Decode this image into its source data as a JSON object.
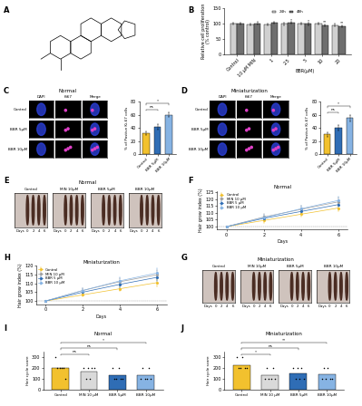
{
  "structure_panel": {
    "panel": "A"
  },
  "chart_data": [
    {
      "panel": "B",
      "type": "bar",
      "ylabel": "Relative cell proliferation\n(% control)",
      "categories": [
        "Control",
        "10 μM MIN",
        "1",
        "2.5",
        "5",
        "10",
        "20"
      ],
      "group": {
        "label": "BBR(μM)",
        "categories": [
          "1",
          "2.5",
          "5",
          "10",
          "20"
        ]
      },
      "series": [
        {
          "name": "24h",
          "color": "#d0d0d0",
          "values": [
            100,
            97,
            98,
            99,
            101,
            100,
            96
          ],
          "errors": [
            3,
            3,
            3,
            3,
            3,
            3,
            3
          ]
        },
        {
          "name": "48h",
          "color": "#6e6e6e",
          "values": [
            100,
            101,
            104,
            103,
            99,
            95,
            92
          ],
          "errors": [
            3,
            4,
            3,
            3,
            3,
            3,
            4
          ],
          "significance": [
            null,
            null,
            null,
            "*",
            "*",
            "**",
            "**"
          ]
        }
      ],
      "ylim": [
        0,
        150
      ],
      "yticks": [
        0,
        50,
        100,
        150
      ],
      "legend": "upper center"
    },
    {
      "panel": "C",
      "type": "bar",
      "ylabel": "% of Postive Ki-67 cells",
      "categories": [
        "Control",
        "BBR 5μM",
        "BBR 10μM"
      ],
      "values": [
        32,
        42,
        60
      ],
      "errors": [
        3,
        4,
        4
      ],
      "colors": [
        "#f2c12e",
        "#2f6db5",
        "#86b3e3"
      ],
      "ylim": [
        0,
        80
      ],
      "yticks": [
        0,
        20,
        40,
        60,
        80
      ],
      "comparisons": [
        {
          "pair": [
            0,
            1
          ],
          "text": "ns"
        },
        {
          "pair": [
            0,
            2
          ],
          "text": "*"
        }
      ]
    },
    {
      "panel": "D",
      "type": "bar",
      "ylabel": "% of Postive Ki-67 cells",
      "categories": [
        "Control",
        "BBR 5μM",
        "BBR 10μM"
      ],
      "values": [
        30,
        40,
        55
      ],
      "errors": [
        3,
        4,
        5
      ],
      "colors": [
        "#f2c12e",
        "#2f6db5",
        "#86b3e3"
      ],
      "ylim": [
        0,
        80
      ],
      "yticks": [
        0,
        20,
        40,
        60,
        80
      ],
      "comparisons": [
        {
          "pair": [
            0,
            1
          ],
          "text": "ns"
        },
        {
          "pair": [
            0,
            2
          ],
          "text": "*"
        }
      ]
    },
    {
      "panel": "F",
      "type": "line",
      "title": "Normal",
      "xlabel": "Days",
      "ylabel": "Hair grow index (%)",
      "x": [
        0,
        2,
        4,
        6
      ],
      "xlim": [
        -0.5,
        6.5
      ],
      "xticks": [
        0,
        2,
        4,
        6
      ],
      "ylim": [
        98,
        126
      ],
      "yticks": [
        100,
        105,
        110,
        115,
        120,
        125
      ],
      "reference_line": 100,
      "legend": "upper left",
      "marker": "o",
      "series": [
        {
          "name": "Control",
          "color": "#f2c12e",
          "values": [
            100,
            104.5,
            109,
            113.5
          ],
          "errors": [
            0,
            1.5,
            2,
            2.5
          ]
        },
        {
          "name": "MIN 10 μM",
          "color": "#9e9e9e",
          "values": [
            100,
            107,
            112.5,
            118
          ],
          "errors": [
            0,
            2,
            2.5,
            3
          ]
        },
        {
          "name": "BBR 5 μM",
          "color": "#2f6db5",
          "values": [
            100,
            106,
            111,
            116
          ],
          "errors": [
            0,
            1.5,
            2,
            2.5
          ]
        },
        {
          "name": "BBR 10 μM",
          "color": "#86b3e3",
          "values": [
            100,
            106.5,
            113,
            119
          ],
          "errors": [
            0,
            2,
            2.5,
            3
          ]
        }
      ]
    },
    {
      "panel": "H",
      "type": "line",
      "title": "Miniaturization",
      "xlabel": "Days",
      "ylabel": "Hair grow index (%)",
      "x": [
        0,
        2,
        4,
        6
      ],
      "xlim": [
        -0.5,
        6.5
      ],
      "xticks": [
        0,
        2,
        4,
        6
      ],
      "ylim": [
        98,
        120
      ],
      "yticks": [
        100,
        105,
        110,
        115,
        120
      ],
      "reference_line": 100,
      "legend": "upper left",
      "marker": "o",
      "series": [
        {
          "name": "Control",
          "color": "#f2c12e",
          "values": [
            100,
            103.5,
            107,
            110.5
          ],
          "errors": [
            0,
            1,
            1.5,
            2
          ]
        },
        {
          "name": "MIN 10 μM",
          "color": "#9e9e9e",
          "values": [
            100,
            106,
            111,
            115
          ],
          "errors": [
            0,
            1.5,
            2,
            2.5
          ]
        },
        {
          "name": "BBR 5 μM",
          "color": "#2f6db5",
          "values": [
            100,
            105,
            109.5,
            113.5
          ],
          "errors": [
            0,
            1.5,
            2,
            2
          ]
        },
        {
          "name": "BBR 10 μM",
          "color": "#86b3e3",
          "values": [
            100,
            106,
            111.5,
            116
          ],
          "errors": [
            0,
            1.5,
            2,
            2.5
          ]
        }
      ]
    },
    {
      "panel": "I",
      "type": "bar",
      "title": "Normal",
      "ylabel": "Hair cycle score",
      "categories": [
        "Control",
        "MIN 10 μM",
        "BBR 5μM",
        "BBR 10μM"
      ],
      "values": [
        200,
        165,
        135,
        130
      ],
      "points": [
        [
          300,
          200,
          200,
          200,
          200,
          100
        ],
        [
          200,
          100,
          200,
          100,
          200,
          200
        ],
        [
          200,
          100,
          100,
          200,
          100,
          100
        ],
        [
          100,
          200,
          100,
          100,
          200,
          100
        ]
      ],
      "colors": [
        "#f2c12e",
        "#d9d9d9",
        "#2f6db5",
        "#86b3e3"
      ],
      "ylim": [
        0,
        350
      ],
      "yticks": [
        0,
        100,
        200,
        300
      ],
      "comparisons": [
        {
          "pair": [
            0,
            1
          ],
          "text": "ns"
        },
        {
          "pair": [
            0,
            2
          ],
          "text": "ns"
        },
        {
          "pair": [
            0,
            3
          ],
          "text": "*"
        }
      ]
    },
    {
      "panel": "J",
      "type": "bar",
      "title": "Miniaturization",
      "ylabel": "Hair cycle score",
      "categories": [
        "Control",
        "MIN 10 μM",
        "BBR 5μM",
        "BBR 10μM"
      ],
      "values": [
        225,
        135,
        150,
        140
      ],
      "points": [
        [
          300,
          200,
          200,
          300,
          200,
          200
        ],
        [
          100,
          200,
          100,
          100,
          200,
          100
        ],
        [
          200,
          100,
          200,
          100,
          200,
          100
        ],
        [
          100,
          200,
          100,
          200,
          100,
          100
        ]
      ],
      "colors": [
        "#f2c12e",
        "#d9d9d9",
        "#2f6db5",
        "#86b3e3"
      ],
      "ylim": [
        0,
        350
      ],
      "yticks": [
        0,
        100,
        200,
        300
      ],
      "comparisons": [
        {
          "pair": [
            0,
            1
          ],
          "text": "*"
        },
        {
          "pair": [
            0,
            2
          ],
          "text": "ns"
        },
        {
          "pair": [
            0,
            3
          ],
          "text": "**"
        }
      ]
    }
  ],
  "image_panels": [
    {
      "panel": "C",
      "title": "Normal",
      "columns": [
        "DAPI",
        "Ki67",
        "Merge"
      ],
      "rows": [
        "Control",
        "BBR 5μM",
        "BBR 10μM"
      ]
    },
    {
      "panel": "D",
      "title": "Miniaturization",
      "columns": [
        "DAPI",
        "Ki67",
        "Merge"
      ],
      "rows": [
        "Control",
        "BBR 5μM",
        "BBR 10μM"
      ]
    },
    {
      "panel": "E",
      "title": "Normal",
      "captions": [
        "Control",
        "MIN 10μM",
        "BBR 5μM",
        "BBR 10μM"
      ],
      "axis_label": "Days",
      "days": [
        0,
        2,
        4,
        6
      ]
    },
    {
      "panel": "G",
      "title": "Miniaturization",
      "captions": [
        "Control",
        "MIN 10μM",
        "BBR 5μM",
        "BBR 10μM"
      ],
      "axis_label": "Days",
      "days": [
        0,
        2,
        4,
        6
      ]
    }
  ]
}
